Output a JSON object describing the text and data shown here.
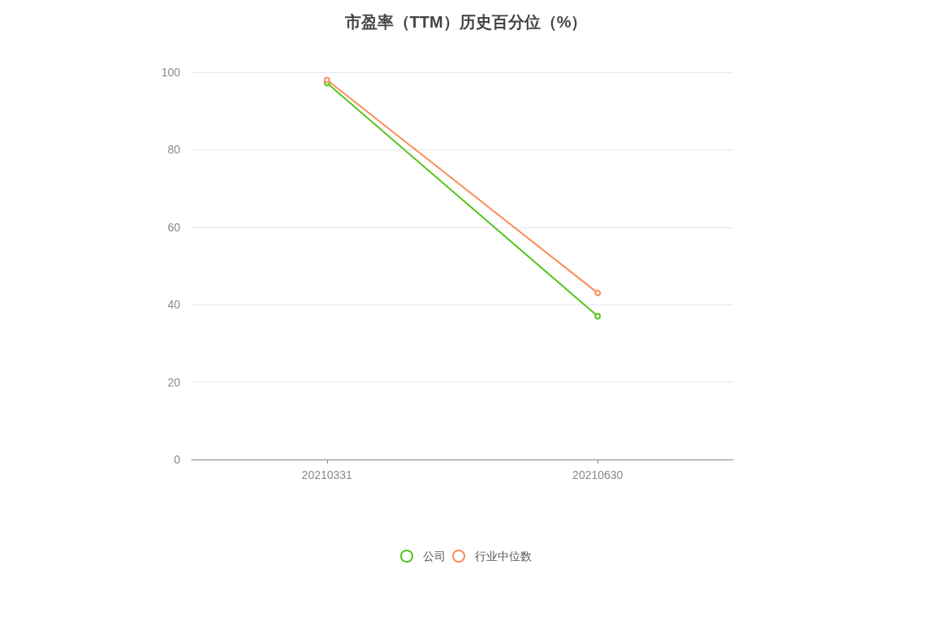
{
  "chart_data": {
    "type": "line",
    "title": "市盈率（TTM）历史百分位（%）",
    "categories": [
      "20210331",
      "20210630"
    ],
    "series": [
      {
        "name": "公司",
        "color": "#52c41a",
        "values": [
          97.2,
          37
        ]
      },
      {
        "name": "行业中位数",
        "color": "#fa8c59",
        "values": [
          98,
          43
        ]
      }
    ],
    "ylim": [
      0,
      100
    ],
    "yticks": [
      0,
      20,
      40,
      60,
      80,
      100
    ],
    "grid": "y",
    "legend": "bottom",
    "marker": "circle",
    "line_style": "solid"
  }
}
